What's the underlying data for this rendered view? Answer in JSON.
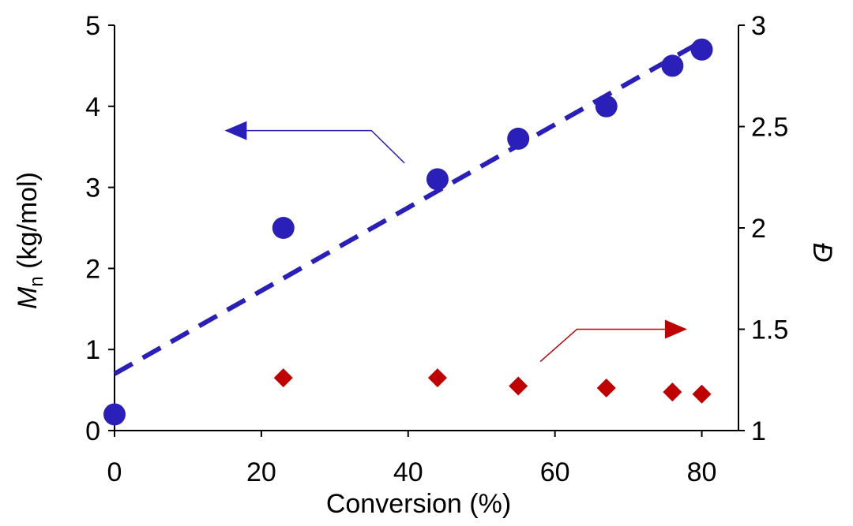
{
  "chart_data": {
    "type": "scatter",
    "xlabel": "Conversion (%)",
    "ylabel_left": {
      "italic": "M",
      "sub": "n",
      "unit": " (kg/mol)"
    },
    "ylabel_right": "Đ",
    "x_ticks": [
      "0",
      "20",
      "40",
      "60",
      "80"
    ],
    "y_left_ticks": [
      "0",
      "1",
      "2",
      "3",
      "4",
      "5"
    ],
    "y_right_ticks": [
      "1",
      "1.5",
      "2",
      "2.5",
      "3"
    ],
    "xlim": [
      0,
      85
    ],
    "ylim_left": [
      0,
      5
    ],
    "ylim_right": [
      1,
      3
    ],
    "series": [
      {
        "name": "Mn",
        "axis": "left",
        "marker": "circle",
        "color": "#2a1fb8",
        "x": [
          0,
          23,
          44,
          55,
          67,
          76,
          80
        ],
        "y": [
          0.2,
          2.5,
          3.1,
          3.6,
          4.0,
          4.5,
          4.7
        ]
      },
      {
        "name": "Mn linear fit",
        "axis": "left",
        "style": "dashed",
        "color": "#2a1fb8",
        "x": [
          0,
          80
        ],
        "y": [
          0.7,
          4.8
        ]
      },
      {
        "name": "Đ",
        "axis": "right",
        "marker": "diamond",
        "color": "#c00000",
        "x": [
          23,
          44,
          55,
          67,
          76,
          80
        ],
        "y": [
          1.26,
          1.26,
          1.22,
          1.21,
          1.19,
          1.18
        ]
      }
    ],
    "annotations": [
      {
        "name": "arrow-to-left-axis",
        "color": "#2a1fb8",
        "points": [
          [
            39.5,
            3.3
          ],
          [
            35,
            3.7
          ],
          [
            15,
            3.7
          ]
        ]
      },
      {
        "name": "arrow-to-right-axis",
        "color": "#c00000",
        "points": [
          [
            58,
            0.85
          ],
          [
            63,
            1.25
          ],
          [
            78,
            1.25
          ]
        ]
      }
    ]
  }
}
